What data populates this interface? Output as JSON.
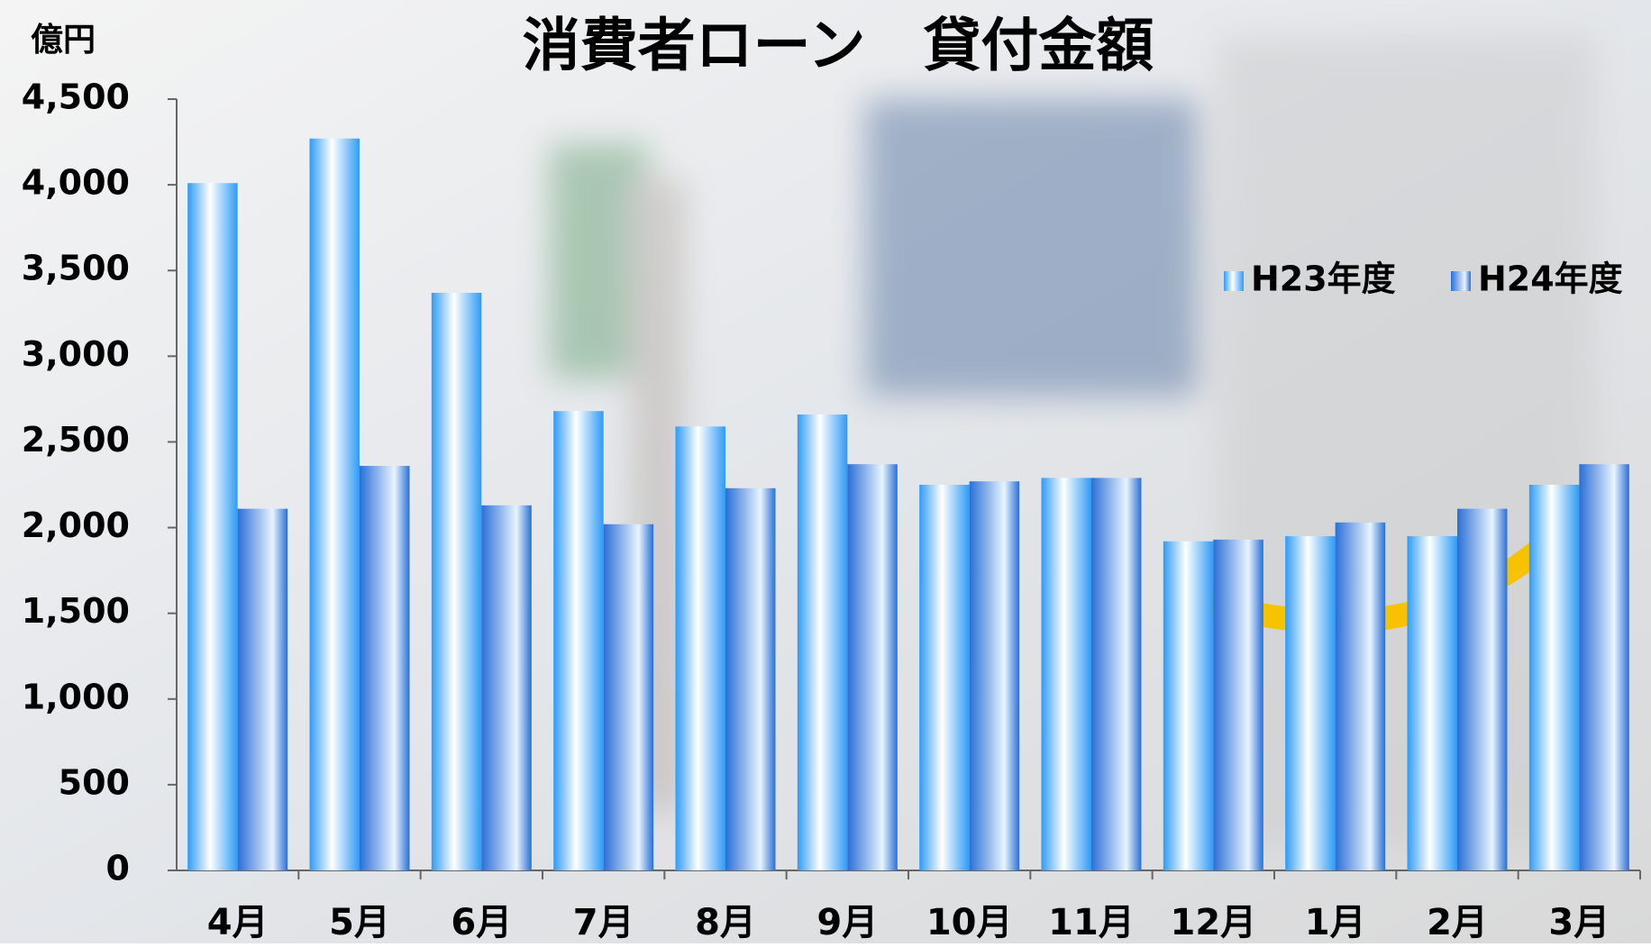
{
  "chart_data": {
    "type": "bar",
    "title": "消費者ローン　貸付金額",
    "y_unit": "億円",
    "categories": [
      "4月",
      "5月",
      "6月",
      "7月",
      "8月",
      "9月",
      "10月",
      "11月",
      "12月",
      "1月",
      "2月",
      "3月"
    ],
    "series": [
      {
        "name": "H23年度",
        "color": "#2f9bf5",
        "values": [
          4010,
          4270,
          3370,
          2680,
          2590,
          2660,
          2250,
          2290,
          1920,
          1950,
          1950,
          2250
        ]
      },
      {
        "name": "H24年度",
        "color": "#2a6fd6",
        "values": [
          2110,
          2360,
          2130,
          2020,
          2230,
          2370,
          2270,
          2290,
          1930,
          2030,
          2110,
          2370
        ]
      }
    ],
    "ylim": [
      0,
      4500
    ],
    "yticks": [
      0,
      500,
      {
        "value": 1000,
        "label": "1,000"
      },
      {
        "value": 1500,
        "label": "1,500"
      },
      {
        "value": 2000,
        "label": "2,000"
      },
      {
        "value": 2500,
        "label": "2,500"
      },
      {
        "value": 3000,
        "label": "3,000"
      },
      {
        "value": 3500,
        "label": "3,500"
      },
      {
        "value": 4000,
        "label": "4,000"
      },
      {
        "value": 4500,
        "label": "4,500"
      }
    ],
    "legend": "upper right"
  }
}
